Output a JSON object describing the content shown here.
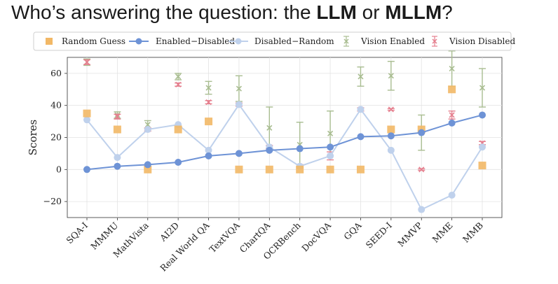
{
  "slide": {
    "title_prefix": "Who’s answering the question: the ",
    "title_llm": "LLM",
    "title_or": " or ",
    "title_mllm": "MLLM",
    "title_suffix": "?"
  },
  "chart_data": {
    "type": "line",
    "title": "",
    "xlabel": "",
    "ylabel": "Scores",
    "ylim": [
      -30,
      70
    ],
    "yticks": [
      -20,
      0,
      20,
      40,
      60
    ],
    "grid": true,
    "legend_position": "top",
    "categories": [
      "SQA-I",
      "MMMU",
      "MathVista",
      "AI2D",
      "Real World QA",
      "TextVQA",
      "ChartQA",
      "OCRBench",
      "DocVQA",
      "GQA",
      "SEED-I",
      "MMVP",
      "MME",
      "MMB"
    ],
    "series": [
      {
        "name": "Random Guess",
        "kind": "marker",
        "marker": "square",
        "color": "#F2B866",
        "values": [
          35,
          25,
          0,
          25,
          30,
          0,
          0,
          0,
          0,
          0,
          25,
          25,
          50,
          2.5
        ]
      },
      {
        "name": "Enabled−Disabled",
        "kind": "line",
        "color": "#6E93D6",
        "values": [
          0,
          2,
          3,
          4.5,
          8.5,
          10,
          12,
          13,
          14,
          20.5,
          21,
          23,
          29,
          34
        ]
      },
      {
        "name": "Disabled−Random",
        "kind": "line",
        "color": "#BFD1EC",
        "values": [
          31,
          7.5,
          25,
          28,
          12,
          40.5,
          14,
          2,
          8.5,
          37.5,
          12,
          -25,
          -16,
          14
        ]
      },
      {
        "name": "Vision Enabled",
        "kind": "errorbar",
        "color": "#A9BD91",
        "values": [
          67,
          34,
          28,
          58,
          51,
          50.5,
          26,
          15.5,
          22.5,
          58,
          58.5,
          23,
          63,
          51
        ],
        "err": [
          2,
          2,
          2.5,
          2,
          4,
          8,
          13,
          14,
          14,
          6,
          9,
          11,
          11,
          12
        ]
      },
      {
        "name": "Vision Disabled",
        "kind": "errorbar",
        "color": "#E57F8E",
        "values": [
          67,
          33,
          25,
          53,
          42,
          40.5,
          14,
          2,
          8.5,
          37.5,
          37.5,
          0,
          34,
          16.5
        ],
        "err": [
          1.5,
          1.5,
          1,
          1,
          1,
          1,
          1,
          1,
          2.5,
          1,
          0.5,
          0.5,
          2.5,
          1
        ]
      }
    ]
  }
}
